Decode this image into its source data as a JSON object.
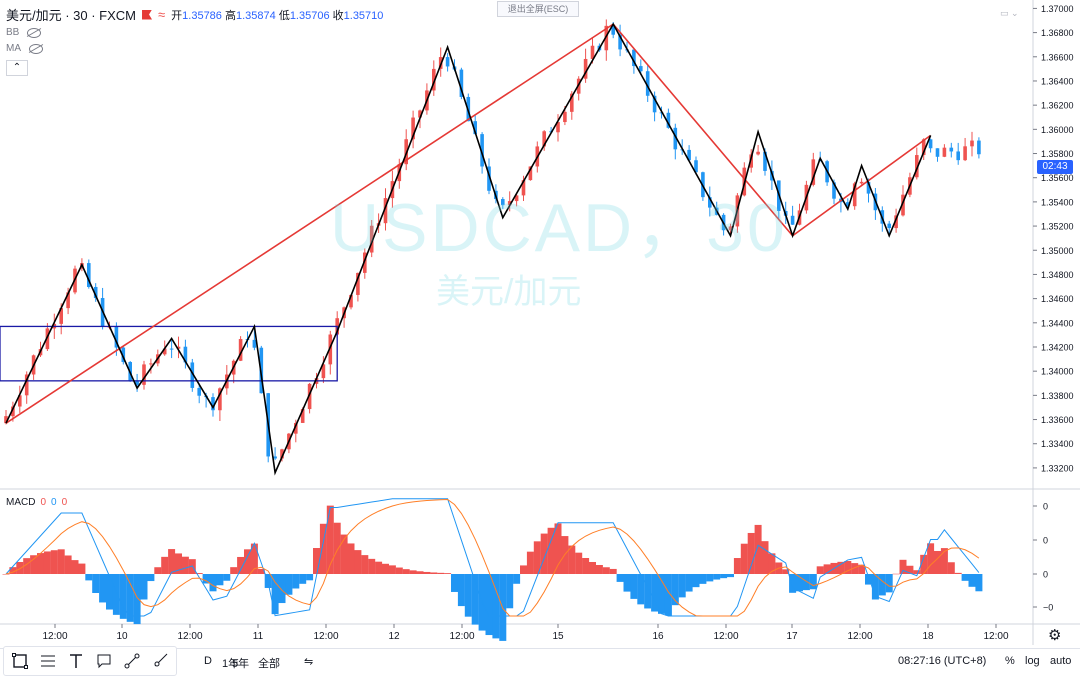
{
  "header": {
    "symbol": "美元/加元 · 30 · FXCM",
    "ohlc": [
      {
        "label": "开",
        "value": "1.35786"
      },
      {
        "label": "高",
        "value": "1.35874"
      },
      {
        "label": "低",
        "value": "1.35706"
      },
      {
        "label": "收",
        "value": "1.35710"
      }
    ],
    "exit_fullscreen": "退出全屏(ESC)"
  },
  "indicators": {
    "bb_label": "BB",
    "ma_label": "MA",
    "collapse_glyph": "⌃"
  },
  "watermark": {
    "main": "USDCAD，30",
    "sub": "美元/加元"
  },
  "price_axis": {
    "ticks": [
      "1.37000",
      "1.36800",
      "1.36600",
      "1.36400",
      "1.36200",
      "1.36000",
      "1.35800",
      "1.35600",
      "1.35400",
      "1.35200",
      "1.35000",
      "1.34800",
      "1.34600",
      "1.34400",
      "1.34200",
      "1.34000",
      "1.33800",
      "1.33600",
      "1.33400",
      "1.33200"
    ],
    "countdown": "02:43",
    "macd_ticks": [
      "0",
      "0",
      "0",
      "−0"
    ]
  },
  "macd": {
    "name": "MACD",
    "values": [
      "0",
      "0",
      "0"
    ]
  },
  "time_axis": {
    "labels": [
      "12:00",
      "10",
      "12:00",
      "11",
      "12:00",
      "12",
      "12:00",
      "15",
      "16",
      "12:00",
      "17",
      "12:00",
      "18",
      "12:00"
    ]
  },
  "bottom_bar": {
    "ranges": [
      "D",
      "1年",
      "5年",
      "全部"
    ],
    "time": "08:27:16 (UTC+8)",
    "percent": "%",
    "log": "log",
    "auto": "auto"
  },
  "colors": {
    "up": "#ef5350",
    "down": "#2196f3",
    "zigzag": "#000000",
    "trendline": "#e53935",
    "box": "#1a1aa6",
    "macd_line": "#2196f3",
    "signal_line": "#ff7f27"
  },
  "chart_data": {
    "type": "candlestick",
    "symbol": "USDCAD",
    "interval": "30",
    "ylim": [
      1.331,
      1.3702
    ],
    "zigzag_points": [
      {
        "t": 0,
        "p": 1.3357
      },
      {
        "t": 11,
        "p": 1.3488
      },
      {
        "t": 19,
        "p": 1.3386
      },
      {
        "t": 24,
        "p": 1.3427
      },
      {
        "t": 30,
        "p": 1.337
      },
      {
        "t": 36,
        "p": 1.3437
      },
      {
        "t": 39,
        "p": 1.3316
      },
      {
        "t": 48,
        "p": 1.3433
      },
      {
        "t": 64,
        "p": 1.3668
      },
      {
        "t": 72,
        "p": 1.3527
      },
      {
        "t": 88,
        "p": 1.3687
      },
      {
        "t": 105,
        "p": 1.3512
      },
      {
        "t": 109,
        "p": 1.3598
      },
      {
        "t": 114,
        "p": 1.3512
      },
      {
        "t": 118,
        "p": 1.3576
      },
      {
        "t": 122,
        "p": 1.3534
      },
      {
        "t": 124,
        "p": 1.357
      },
      {
        "t": 128,
        "p": 1.3512
      },
      {
        "t": 134,
        "p": 1.3595
      }
    ],
    "trendlines": [
      {
        "from": {
          "t": 0,
          "p": 1.3357
        },
        "to": {
          "t": 88,
          "p": 1.3687
        }
      },
      {
        "from": {
          "t": 88,
          "p": 1.3687
        },
        "to": {
          "t": 114,
          "p": 1.3512
        }
      },
      {
        "from": {
          "t": 114,
          "p": 1.3512
        },
        "to": {
          "t": 134,
          "p": 1.3595
        }
      }
    ],
    "range_box": {
      "t_start": 0,
      "t_end": 48,
      "p_low": 1.3392,
      "p_high": 1.3437
    },
    "candle_count": 142
  }
}
